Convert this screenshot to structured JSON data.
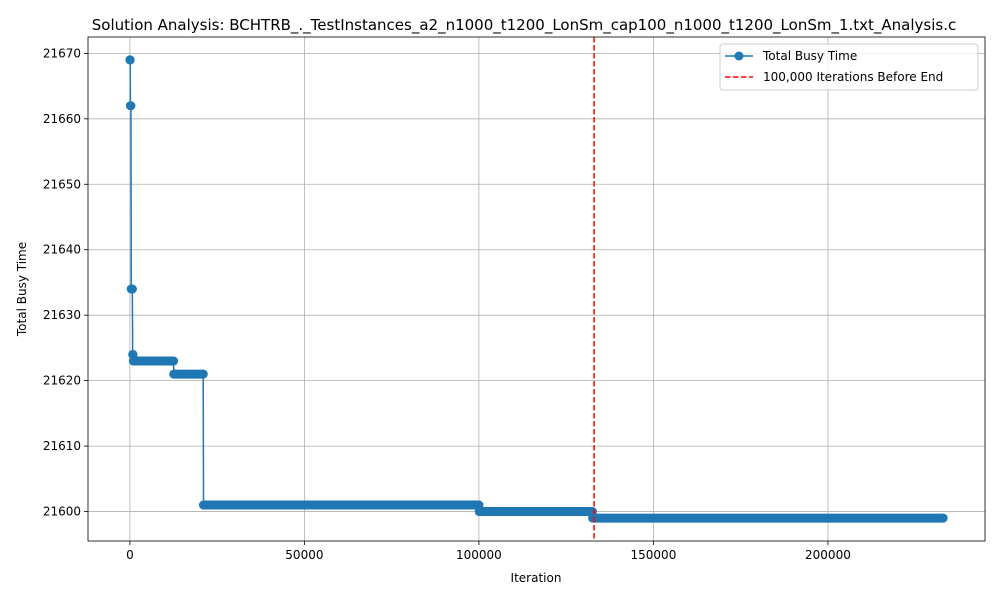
{
  "chart_data": {
    "type": "line",
    "title": "Solution Analysis: BCHTRB_._TestInstances_a2_n1000_t1200_LonSm_cap100_n1000_t1200_LonSm_1.txt_Analysis.c",
    "xlabel": "Iteration",
    "ylabel": "Total Busy Time",
    "xlim": [
      -12000,
      245000
    ],
    "ylim": [
      21595.5,
      21672.5
    ],
    "xticks": [
      0,
      50000,
      100000,
      150000,
      200000
    ],
    "yticks": [
      21600,
      21610,
      21620,
      21630,
      21640,
      21650,
      21660,
      21670
    ],
    "grid": true,
    "legend_position": "top-right",
    "series": [
      {
        "name": "Total Busy Time",
        "color": "#1f77b4",
        "marker": "circle",
        "points": [
          [
            0,
            21669
          ],
          [
            100,
            21669
          ],
          [
            150,
            21662
          ],
          [
            300,
            21662
          ],
          [
            400,
            21634
          ],
          [
            700,
            21634
          ],
          [
            800,
            21624
          ],
          [
            900,
            21624
          ],
          [
            1000,
            21623
          ],
          [
            12500,
            21623
          ],
          [
            12600,
            21621
          ],
          [
            21000,
            21621
          ],
          [
            21100,
            21601
          ],
          [
            100000,
            21601
          ],
          [
            100100,
            21600
          ],
          [
            132500,
            21600
          ],
          [
            132600,
            21599
          ],
          [
            233000,
            21599
          ]
        ]
      }
    ],
    "vlines": [
      {
        "name": "100,000 Iterations Before End",
        "x": 133000,
        "color": "#ff0000",
        "style": "dashed"
      }
    ]
  }
}
